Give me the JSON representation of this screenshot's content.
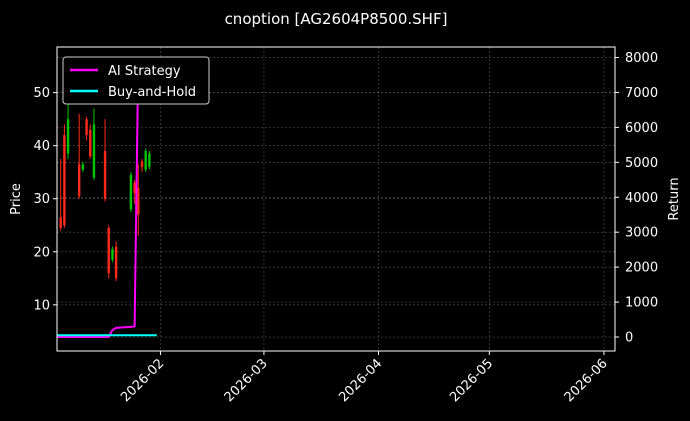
{
  "chart_data": {
    "type": "line",
    "title": "cnoption [AG2604P8500.SHF]",
    "xlabel": "",
    "ylabel": "Price",
    "y2label": "Return",
    "x_range": [
      "2026-01-04",
      "2026-06-04"
    ],
    "x_ticks": [
      "2026-02",
      "2026-03",
      "2026-04",
      "2026-05",
      "2026-06"
    ],
    "ylim": [
      1.3,
      58.6
    ],
    "y_ticks": [
      10,
      20,
      30,
      40,
      50
    ],
    "y2lim": [
      -400,
      8300
    ],
    "y2_ticks": [
      0,
      1000,
      2000,
      3000,
      4000,
      5000,
      6000,
      7000,
      8000
    ],
    "grid": true,
    "legend": "top-left",
    "series": [
      {
        "name": "AI Strategy",
        "axis": "right",
        "color": "#ff00ff",
        "points": [
          [
            "2026-01-04",
            0
          ],
          [
            "2026-01-18",
            0
          ],
          [
            "2026-01-19",
            200
          ],
          [
            "2026-01-20",
            260
          ],
          [
            "2026-01-25",
            300
          ],
          [
            "2026-01-26",
            8000
          ],
          [
            "2026-01-27",
            7900
          ]
        ]
      },
      {
        "name": "Buy-and-Hold",
        "axis": "right",
        "color": "#00ffff",
        "points": [
          [
            "2026-01-04",
            50
          ],
          [
            "2026-01-31",
            50
          ]
        ]
      }
    ],
    "candles": [
      {
        "date": "2026-01-05",
        "open": 26.5,
        "close": 24.5,
        "high": 37.5,
        "low": 24.0
      },
      {
        "date": "2026-01-06",
        "open": 42.0,
        "close": 25.0,
        "high": 44.0,
        "low": 24.5
      },
      {
        "date": "2026-01-07",
        "open": 38.5,
        "close": 45.0,
        "high": 52.0,
        "low": 37.5
      },
      {
        "date": "2026-01-10",
        "open": 36.5,
        "close": 30.5,
        "high": 46.0,
        "low": 30.0
      },
      {
        "date": "2026-01-11",
        "open": 35.5,
        "close": 36.5,
        "high": 37.0,
        "low": 35.0
      },
      {
        "date": "2026-01-12",
        "open": 45.0,
        "close": 42.0,
        "high": 45.5,
        "low": 41.0
      },
      {
        "date": "2026-01-13",
        "open": 43.0,
        "close": 38.0,
        "high": 44.0,
        "low": 37.5
      },
      {
        "date": "2026-01-14",
        "open": 34.0,
        "close": 44.0,
        "high": 47.0,
        "low": 33.5
      },
      {
        "date": "2026-01-17",
        "open": 39.0,
        "close": 30.0,
        "high": 45.0,
        "low": 29.5
      },
      {
        "date": "2026-01-18",
        "open": 24.5,
        "close": 16.0,
        "high": 25.0,
        "low": 15.0
      },
      {
        "date": "2026-01-19",
        "open": 18.5,
        "close": 20.5,
        "high": 21.0,
        "low": 18.0
      },
      {
        "date": "2026-01-20",
        "open": 21.0,
        "close": 15.0,
        "high": 22.0,
        "low": 14.5
      },
      {
        "date": "2026-01-24",
        "open": 28.0,
        "close": 34.5,
        "high": 35.0,
        "low": 27.5
      },
      {
        "date": "2026-01-25",
        "open": 33.0,
        "close": 31.0,
        "high": 33.5,
        "low": 29.0
      },
      {
        "date": "2026-01-26",
        "open": 32.0,
        "close": 27.0,
        "high": 36.5,
        "low": 23.0
      },
      {
        "date": "2026-01-27",
        "open": 37.0,
        "close": 36.0,
        "high": 37.5,
        "low": 35.0
      },
      {
        "date": "2026-01-28",
        "open": 35.5,
        "close": 39.0,
        "high": 39.5,
        "low": 35.0
      },
      {
        "date": "2026-01-29",
        "open": 36.0,
        "close": 38.5,
        "high": 39.0,
        "low": 35.5
      }
    ]
  }
}
